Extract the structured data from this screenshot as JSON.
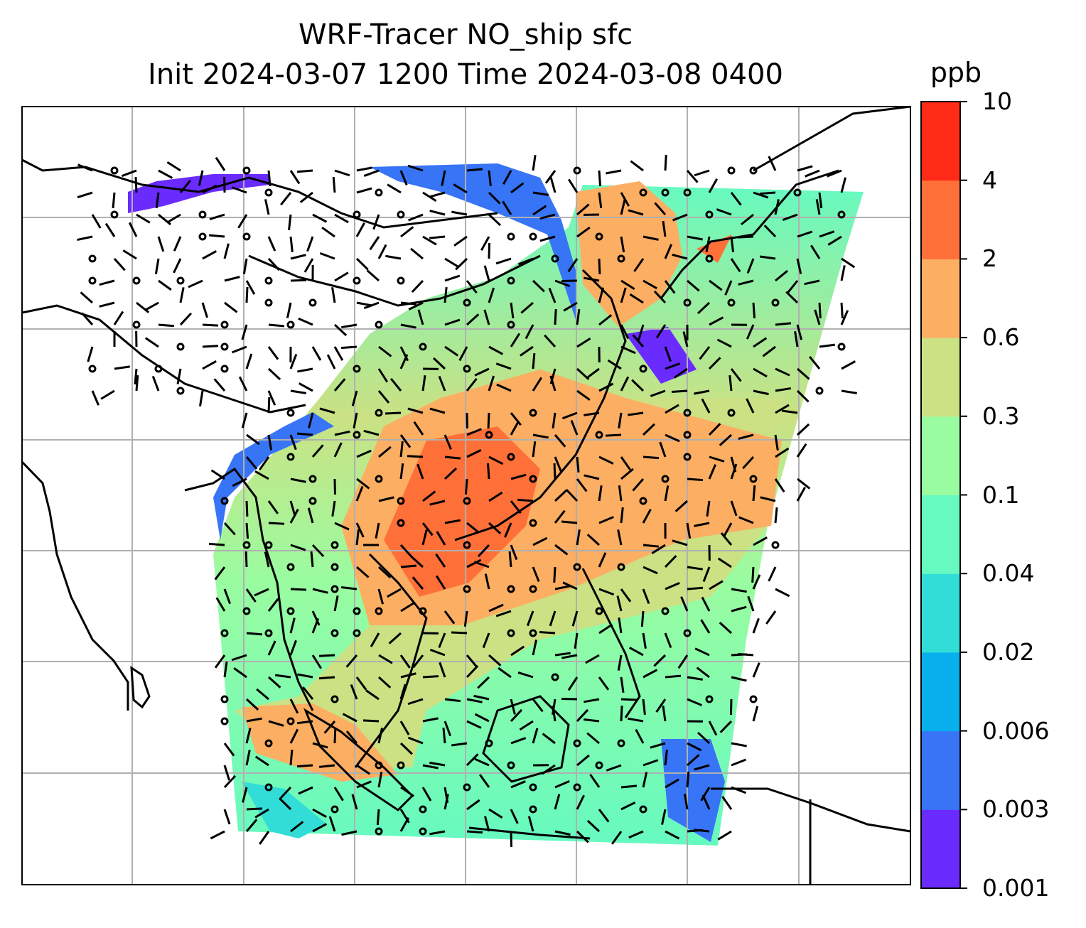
{
  "title": {
    "line1": "WRF-Tracer NO_ship sfc",
    "line2": "Init 2024-03-07 1200 Time 2024-03-08 0400"
  },
  "colorbar": {
    "unit": "ppb",
    "ticks": [
      "0.001",
      "0.003",
      "0.006",
      "0.02",
      "0.04",
      "0.1",
      "0.3",
      "0.6",
      "2",
      "4",
      "10"
    ],
    "colors": [
      "#6a2bff",
      "#3874f6",
      "#07b0ec",
      "#33ddd7",
      "#66fac0",
      "#9afca0",
      "#cbe184",
      "#fcae63",
      "#ff7038",
      "#ff2b16"
    ]
  },
  "map": {
    "grid": "on",
    "wind_barbs": "on",
    "colors": {
      "land_line": "#000000",
      "grid_line": "#b0b0b0",
      "no_data": "#ffffff"
    }
  }
}
